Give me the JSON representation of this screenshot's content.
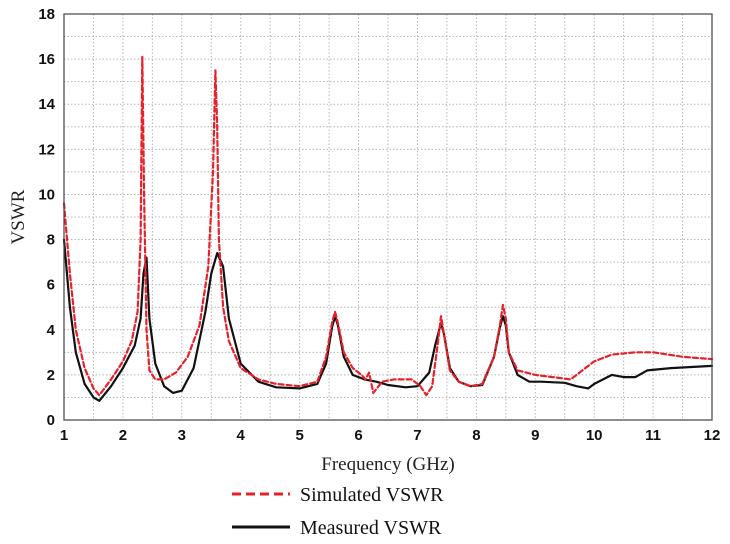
{
  "chart_data": {
    "type": "line",
    "title": "",
    "xlabel": "Frequency (GHz)",
    "ylabel": "VSWR",
    "xlim": [
      1,
      12
    ],
    "ylim": [
      0,
      18
    ],
    "xticks": [
      "1",
      "2",
      "3",
      "4",
      "5",
      "6",
      "7",
      "8",
      "9",
      "10",
      "11",
      "12"
    ],
    "yticks": [
      "0",
      "2",
      "4",
      "6",
      "8",
      "10",
      "12",
      "14",
      "16",
      "18"
    ],
    "grid": true,
    "legend_position": "bottom",
    "series": [
      {
        "name": "Simulated VSWR",
        "color": "#e8202a",
        "style": "dashed",
        "x": [
          1.0,
          1.1,
          1.2,
          1.35,
          1.5,
          1.6,
          1.8,
          2.0,
          2.15,
          2.25,
          2.3,
          2.33,
          2.36,
          2.4,
          2.45,
          2.55,
          2.7,
          2.9,
          3.1,
          3.3,
          3.45,
          3.53,
          3.57,
          3.6,
          3.63,
          3.7,
          3.8,
          4.0,
          4.3,
          4.6,
          5.0,
          5.3,
          5.45,
          5.55,
          5.6,
          5.65,
          5.75,
          5.9,
          6.05,
          6.12,
          6.18,
          6.25,
          6.4,
          6.6,
          6.9,
          7.05,
          7.15,
          7.25,
          7.35,
          7.4,
          7.45,
          7.55,
          7.7,
          7.9,
          8.1,
          8.3,
          8.4,
          8.45,
          8.5,
          8.55,
          8.7,
          9.0,
          9.3,
          9.6,
          9.8,
          10.0,
          10.3,
          10.7,
          11.0,
          11.5,
          12.0
        ],
        "y": [
          9.6,
          6.5,
          4.0,
          2.3,
          1.4,
          1.1,
          1.8,
          2.6,
          3.5,
          4.8,
          8.0,
          16.1,
          10.0,
          4.0,
          2.2,
          1.8,
          1.8,
          2.1,
          2.8,
          4.2,
          6.8,
          11.0,
          15.5,
          13.0,
          8.0,
          5.0,
          3.5,
          2.3,
          1.8,
          1.6,
          1.5,
          1.7,
          2.8,
          4.3,
          4.8,
          4.3,
          3.0,
          2.3,
          2.0,
          1.8,
          2.1,
          1.2,
          1.7,
          1.8,
          1.8,
          1.5,
          1.1,
          1.5,
          3.5,
          4.6,
          3.8,
          2.2,
          1.7,
          1.5,
          1.6,
          2.8,
          4.2,
          5.1,
          4.5,
          3.0,
          2.2,
          2.0,
          1.9,
          1.8,
          2.2,
          2.6,
          2.9,
          3.0,
          3.0,
          2.8,
          2.7
        ]
      },
      {
        "name": "Measured VSWR",
        "color": "#111111",
        "style": "solid",
        "x": [
          1.0,
          1.1,
          1.2,
          1.35,
          1.5,
          1.6,
          1.8,
          2.0,
          2.2,
          2.3,
          2.35,
          2.4,
          2.45,
          2.55,
          2.7,
          2.85,
          3.0,
          3.2,
          3.4,
          3.5,
          3.6,
          3.7,
          3.8,
          4.0,
          4.3,
          4.6,
          5.0,
          5.3,
          5.45,
          5.55,
          5.6,
          5.65,
          5.75,
          5.9,
          6.1,
          6.3,
          6.5,
          6.8,
          7.0,
          7.2,
          7.3,
          7.4,
          7.45,
          7.55,
          7.7,
          7.9,
          8.1,
          8.3,
          8.4,
          8.45,
          8.5,
          8.55,
          8.7,
          8.9,
          9.1,
          9.5,
          9.7,
          9.9,
          10.0,
          10.3,
          10.5,
          10.7,
          10.9,
          11.3,
          12.0
        ],
        "y": [
          8.0,
          5.0,
          3.0,
          1.6,
          1.0,
          0.85,
          1.5,
          2.3,
          3.3,
          4.5,
          6.5,
          7.2,
          4.5,
          2.5,
          1.5,
          1.2,
          1.3,
          2.3,
          4.8,
          6.5,
          7.4,
          6.8,
          4.5,
          2.5,
          1.7,
          1.45,
          1.4,
          1.6,
          2.5,
          4.1,
          4.6,
          4.2,
          2.8,
          2.0,
          1.8,
          1.7,
          1.55,
          1.45,
          1.5,
          2.1,
          3.3,
          4.3,
          3.8,
          2.3,
          1.7,
          1.5,
          1.55,
          2.8,
          4.1,
          4.6,
          4.2,
          3.0,
          2.0,
          1.7,
          1.7,
          1.65,
          1.5,
          1.4,
          1.6,
          2.0,
          1.9,
          1.9,
          2.2,
          2.3,
          2.4
        ]
      }
    ]
  }
}
